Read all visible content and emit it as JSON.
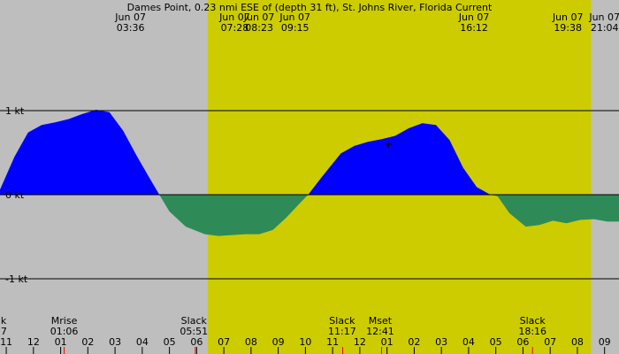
{
  "chart_data": {
    "type": "area",
    "title": "Dames Point, 0.23 nmi ESE of (depth 31 ft), St. Johns River, Florida Current",
    "ylim": [
      -1.0,
      1.0
    ],
    "x_range_hours": [
      -0.03,
      22.73
    ],
    "y_ticks": [
      {
        "value": 1,
        "label": "1 kt"
      },
      {
        "value": 0,
        "label": "0 kt"
      },
      {
        "value": -1,
        "label": "-1 kt"
      }
    ],
    "daylight": {
      "start": 7.6,
      "end": 21.7
    },
    "colors": {
      "night": "#bebebe",
      "day": "#cccc00",
      "flood": "#0000ff",
      "ebb": "#2e8b57",
      "event_tick": "#ff0000"
    },
    "series": [
      {
        "x": [
          -0.03,
          0.5,
          1.0,
          1.5,
          2.0,
          2.5,
          3.0,
          3.5,
          4.0,
          4.5,
          5.0,
          5.5,
          5.83,
          6.2,
          6.8,
          7.5,
          8.0,
          8.5,
          9.0,
          9.5,
          10.0,
          10.5,
          11.0,
          11.3,
          11.8,
          12.5,
          13.0,
          13.5,
          14.0,
          14.5,
          15.0,
          15.5,
          16.0,
          16.5,
          17.0,
          17.5,
          18.0,
          18.27,
          18.7,
          19.3,
          19.8,
          20.3,
          20.8,
          21.3,
          21.8,
          22.3,
          22.73
        ],
        "values": [
          0.06,
          0.45,
          0.74,
          0.83,
          0.86,
          0.9,
          0.96,
          1.01,
          0.98,
          0.76,
          0.46,
          0.18,
          0.0,
          -0.2,
          -0.38,
          -0.47,
          -0.49,
          -0.48,
          -0.47,
          -0.47,
          -0.42,
          -0.27,
          -0.1,
          0.0,
          0.21,
          0.49,
          0.58,
          0.63,
          0.66,
          0.7,
          0.79,
          0.85,
          0.83,
          0.65,
          0.32,
          0.09,
          0.0,
          -0.02,
          -0.22,
          -0.38,
          -0.36,
          -0.31,
          -0.34,
          -0.3,
          -0.29,
          -0.32,
          -0.32
        ]
      }
    ],
    "top_labels": [
      {
        "line1": "Jun 07",
        "line2": "03:36",
        "hour": 4.77
      },
      {
        "line1": "Jun 07",
        "line2": "07:28",
        "hour": 8.6
      },
      {
        "line1": "Jun 07",
        "line2": "08:23",
        "hour": 9.5
      },
      {
        "line1": "Jun 07",
        "line2": "09:15",
        "hour": 10.82
      },
      {
        "line1": "Jun 07",
        "line2": "16:12",
        "hour": 17.4
      },
      {
        "line1": "Jun 07",
        "line2": "19:38",
        "hour": 20.85
      },
      {
        "line1": "Jun 07",
        "line2": "21:04",
        "hour": 22.2
      }
    ],
    "bottom_events": [
      {
        "line1": "k",
        "line2": "7",
        "hour": 0.0,
        "align": "start"
      },
      {
        "line1": "Mrise",
        "line2": "01:06",
        "hour": 2.33
      },
      {
        "line1": "Slack",
        "line2": "05:51",
        "hour": 7.1
      },
      {
        "line1": "Slack",
        "line2": "11:17",
        "hour": 12.55
      },
      {
        "line1": "Mset",
        "line2": "12:41",
        "hour": 13.95
      },
      {
        "line1": "Slack",
        "line2": "18:16",
        "hour": 19.55
      }
    ],
    "event_ticks": [
      2.33,
      7.15,
      12.57,
      14.0,
      19.55
    ],
    "hour_ticks": [
      {
        "hour": 0.2,
        "label": "11"
      },
      {
        "hour": 1.2,
        "label": "12"
      },
      {
        "hour": 2.2,
        "label": "01"
      },
      {
        "hour": 3.2,
        "label": "02"
      },
      {
        "hour": 4.2,
        "label": "03"
      },
      {
        "hour": 5.2,
        "label": "04"
      },
      {
        "hour": 6.2,
        "label": "05"
      },
      {
        "hour": 7.2,
        "label": "06"
      },
      {
        "hour": 8.2,
        "label": "07"
      },
      {
        "hour": 9.2,
        "label": "08"
      },
      {
        "hour": 10.2,
        "label": "09"
      },
      {
        "hour": 11.2,
        "label": "10"
      },
      {
        "hour": 12.2,
        "label": "11"
      },
      {
        "hour": 13.2,
        "label": "12"
      },
      {
        "hour": 14.2,
        "label": "01"
      },
      {
        "hour": 15.2,
        "label": "02"
      },
      {
        "hour": 16.2,
        "label": "03"
      },
      {
        "hour": 17.2,
        "label": "04"
      },
      {
        "hour": 18.2,
        "label": "05"
      },
      {
        "hour": 19.2,
        "label": "06"
      },
      {
        "hour": 20.2,
        "label": "07"
      },
      {
        "hour": 21.2,
        "label": "08"
      },
      {
        "hour": 22.2,
        "label": "09"
      }
    ],
    "current_time": {
      "hour": 14.25,
      "value": 0.6
    }
  }
}
